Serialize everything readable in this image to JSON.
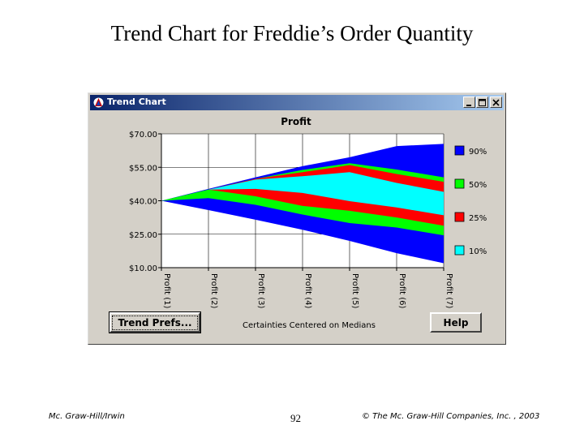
{
  "slide": {
    "title": "Trend Chart for Freddie’s Order Quantity",
    "footer_left": "Mc. Graw-Hill/Irwin",
    "page_number": "92",
    "footer_right": "© The Mc. Graw-Hill Companies, Inc. , 2003"
  },
  "window": {
    "title": "Trend Chart",
    "buttons": {
      "minimize": "_",
      "maximize": "□",
      "close": "×"
    },
    "trend_prefs_label": "Trend Prefs...",
    "help_label": "Help",
    "caption": "Certainties Centered on Medians"
  },
  "chart_data": {
    "type": "area",
    "title": "Profit",
    "x": [
      "Profit (1)",
      "Profit (2)",
      "Profit (3)",
      "Profit (4)",
      "Profit (5)",
      "Profit (6)",
      "Profit (7)"
    ],
    "ylim": [
      10,
      70
    ],
    "yticks": [
      "$70.00",
      "$55.00",
      "$40.00",
      "$25.00",
      "$10.00"
    ],
    "ytick_values": [
      70,
      55,
      40,
      25,
      10
    ],
    "grid": true,
    "legend_position": "right",
    "bands": [
      {
        "name": "90%",
        "color": "#0000ff",
        "upper": [
          40,
          45.3,
          50.5,
          55.5,
          59.5,
          64.5,
          65.5
        ],
        "lower": [
          40,
          35.8,
          31.5,
          27,
          22,
          16.5,
          12
        ]
      },
      {
        "name": "50%",
        "color": "#00ff00",
        "upper": [
          40,
          45,
          49.8,
          53.8,
          56.8,
          54,
          50.5
        ],
        "lower": [
          40,
          41.2,
          38.2,
          33.8,
          30,
          28,
          24.5
        ]
      },
      {
        "name": "25%",
        "color": "#ff0000",
        "upper": [
          40,
          45,
          49.8,
          52.8,
          56,
          52,
          48.5
        ],
        "lower": [
          40,
          45,
          42,
          37.7,
          35.5,
          32.5,
          28.8
        ]
      },
      {
        "name": "10%",
        "color": "#00ffff",
        "upper": [
          40,
          45,
          49.5,
          51,
          52.8,
          48,
          44
        ],
        "lower": [
          40,
          45,
          45.3,
          43.5,
          39.8,
          37,
          33.5
        ]
      }
    ]
  }
}
